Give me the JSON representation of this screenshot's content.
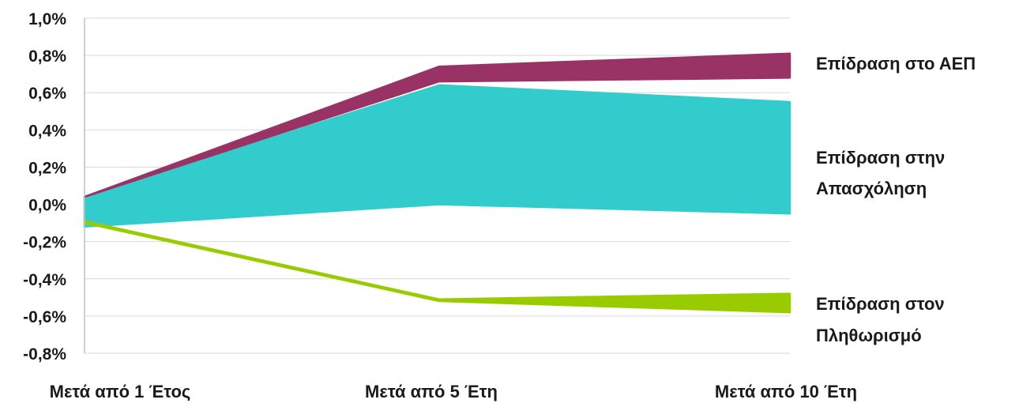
{
  "chart_data": {
    "type": "area",
    "categories": [
      "Μετά από 1 Έτος",
      "Μετά από 5 Έτη",
      "Μετά από 10 Έτη"
    ],
    "y_ticks": [
      "1,0%",
      "0,8%",
      "0,6%",
      "0,4%",
      "0,2%",
      "0,0%",
      "-0,2%",
      "-0,4%",
      "-0,6%",
      "-0,8%"
    ],
    "ylim": [
      -0.8,
      1.0
    ],
    "grid": true,
    "legend_position": "right",
    "series": [
      {
        "name": [
          "Επίδραση στο ΑΕΠ"
        ],
        "color": "#993366",
        "lower": [
          0.04,
          0.66,
          0.68
        ],
        "upper": [
          0.04,
          0.74,
          0.81
        ]
      },
      {
        "name": [
          "Επίδραση στην",
          "Απασχόληση"
        ],
        "color": "#33CCCC",
        "lower": [
          -0.12,
          0.0,
          -0.05
        ],
        "upper": [
          0.04,
          0.64,
          0.55
        ]
      },
      {
        "name": [
          "Επίδραση στον",
          "Πληθωρισμό"
        ],
        "color": "#99CC00",
        "lower": [
          -0.1,
          -0.52,
          -0.58
        ],
        "upper": [
          -0.09,
          -0.51,
          -0.48
        ]
      }
    ]
  }
}
